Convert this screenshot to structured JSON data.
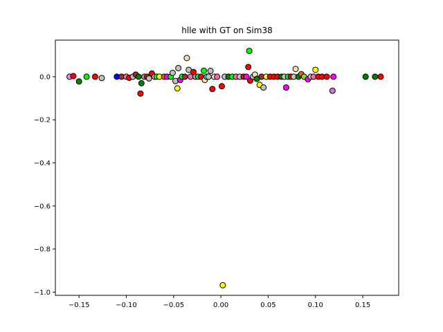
{
  "chart_data": {
    "type": "scatter",
    "title": "hlle with GT on Sim38",
    "xlabel": "",
    "ylabel": "",
    "xlim": [
      -0.175,
      0.188
    ],
    "ylim": [
      -1.015,
      0.17
    ],
    "xticks": [
      -0.15,
      -0.1,
      -0.05,
      0.0,
      0.05,
      0.1,
      0.15
    ],
    "xtick_labels": [
      "−0.15",
      "−0.10",
      "−0.05",
      "0.00",
      "0.05",
      "0.10",
      "0.15"
    ],
    "yticks": [
      -1.0,
      -0.8,
      -0.6,
      -0.4,
      -0.2,
      0.0
    ],
    "ytick_labels": [
      "−1.0",
      "−0.8",
      "−0.6",
      "−0.4",
      "−0.2",
      "0.0"
    ],
    "grid": false,
    "legend": "none",
    "marker_edge_color": "#000000",
    "points": [
      {
        "x": -0.16,
        "y": 0.0,
        "color": "#ee82ee"
      },
      {
        "x": -0.156,
        "y": 0.003,
        "color": "#ff0000"
      },
      {
        "x": -0.15,
        "y": -0.022,
        "color": "#008000"
      },
      {
        "x": -0.142,
        "y": 0.0,
        "color": "#00ff00"
      },
      {
        "x": -0.133,
        "y": 0.0,
        "color": "#ff0000"
      },
      {
        "x": -0.126,
        "y": -0.006,
        "color": "#c0c0c0"
      },
      {
        "x": -0.11,
        "y": 0.0,
        "color": "#0000ff"
      },
      {
        "x": -0.105,
        "y": 0.0,
        "color": "#a52a2a"
      },
      {
        "x": -0.1,
        "y": 0.0,
        "color": "#ff69b4"
      },
      {
        "x": -0.097,
        "y": -0.005,
        "color": "#ff0000"
      },
      {
        "x": -0.093,
        "y": 0.0,
        "color": "#c0c0c0"
      },
      {
        "x": -0.09,
        "y": 0.01,
        "color": "#a52a2a"
      },
      {
        "x": -0.087,
        "y": 0.0,
        "color": "#008000"
      },
      {
        "x": -0.085,
        "y": -0.078,
        "color": "#ff0000"
      },
      {
        "x": -0.084,
        "y": -0.03,
        "color": "#008000"
      },
      {
        "x": -0.081,
        "y": 0.0,
        "color": "#bc8f8f"
      },
      {
        "x": -0.078,
        "y": 0.0,
        "color": "#a52a2a"
      },
      {
        "x": -0.076,
        "y": -0.008,
        "color": "#c0c0c0"
      },
      {
        "x": -0.073,
        "y": 0.015,
        "color": "#ff0000"
      },
      {
        "x": -0.07,
        "y": 0.0,
        "color": "#ffdead"
      },
      {
        "x": -0.068,
        "y": 0.0,
        "color": "#00ff00"
      },
      {
        "x": -0.065,
        "y": 0.0,
        "color": "#ffff00"
      },
      {
        "x": -0.06,
        "y": 0.0,
        "color": "#d2691e"
      },
      {
        "x": -0.057,
        "y": 0.0,
        "color": "#ff00ff"
      },
      {
        "x": -0.053,
        "y": 0.0,
        "color": "#00ff00"
      },
      {
        "x": -0.051,
        "y": 0.018,
        "color": "#c0c0c0"
      },
      {
        "x": -0.048,
        "y": -0.02,
        "color": "#c0c0c0"
      },
      {
        "x": -0.046,
        "y": -0.054,
        "color": "#ffff00"
      },
      {
        "x": -0.045,
        "y": 0.04,
        "color": "#c0c0c0"
      },
      {
        "x": -0.043,
        "y": -0.015,
        "color": "#ff00ff"
      },
      {
        "x": -0.041,
        "y": 0.0,
        "color": "#00ff00"
      },
      {
        "x": -0.038,
        "y": 0.0,
        "color": "#a52a2a"
      },
      {
        "x": -0.036,
        "y": 0.087,
        "color": "#ffdead"
      },
      {
        "x": -0.034,
        "y": 0.032,
        "color": "#c0c0c0"
      },
      {
        "x": -0.032,
        "y": 0.0,
        "color": "#ff69b4"
      },
      {
        "x": -0.029,
        "y": 0.022,
        "color": "#ff0000"
      },
      {
        "x": -0.027,
        "y": 0.0,
        "color": "#bc8f8f"
      },
      {
        "x": -0.024,
        "y": 0.0,
        "color": "#00ff00"
      },
      {
        "x": -0.021,
        "y": 0.0,
        "color": "#ff0000"
      },
      {
        "x": -0.018,
        "y": 0.028,
        "color": "#00ff00"
      },
      {
        "x": -0.017,
        "y": -0.015,
        "color": "#ffdead"
      },
      {
        "x": -0.015,
        "y": 0.0,
        "color": "#00ffff"
      },
      {
        "x": -0.013,
        "y": 0.0,
        "color": "#c0c0c0"
      },
      {
        "x": -0.011,
        "y": 0.027,
        "color": "#c0c0c0"
      },
      {
        "x": -0.009,
        "y": -0.057,
        "color": "#ff0000"
      },
      {
        "x": -0.007,
        "y": 0.0,
        "color": "#ffdead"
      },
      {
        "x": -0.004,
        "y": 0.0,
        "color": "#ff69b4"
      },
      {
        "x": 0.001,
        "y": -0.044,
        "color": "#ff0000"
      },
      {
        "x": 0.002,
        "y": -0.968,
        "color": "#ffff00"
      },
      {
        "x": 0.004,
        "y": 0.0,
        "color": "#c0c0c0"
      },
      {
        "x": 0.008,
        "y": 0.0,
        "color": "#008000"
      },
      {
        "x": 0.012,
        "y": 0.0,
        "color": "#00ff00"
      },
      {
        "x": 0.016,
        "y": 0.0,
        "color": "#ff69b4"
      },
      {
        "x": 0.02,
        "y": 0.0,
        "color": "#c0c0c0"
      },
      {
        "x": 0.024,
        "y": 0.0,
        "color": "#ff0000"
      },
      {
        "x": 0.027,
        "y": 0.0,
        "color": "#ff00ff"
      },
      {
        "x": 0.029,
        "y": 0.045,
        "color": "#ff0000"
      },
      {
        "x": 0.03,
        "y": 0.12,
        "color": "#00ff00"
      },
      {
        "x": 0.031,
        "y": -0.018,
        "color": "#ff0000"
      },
      {
        "x": 0.034,
        "y": 0.0,
        "color": "#c0c0c0"
      },
      {
        "x": 0.036,
        "y": 0.01,
        "color": "#ffdead"
      },
      {
        "x": 0.038,
        "y": -0.01,
        "color": "#008000"
      },
      {
        "x": 0.041,
        "y": -0.038,
        "color": "#ffff00"
      },
      {
        "x": 0.043,
        "y": 0.0,
        "color": "#a52a2a"
      },
      {
        "x": 0.045,
        "y": -0.05,
        "color": "#c0c0c0"
      },
      {
        "x": 0.048,
        "y": 0.0,
        "color": "#ffff00"
      },
      {
        "x": 0.052,
        "y": 0.0,
        "color": "#ff0000"
      },
      {
        "x": 0.056,
        "y": 0.0,
        "color": "#ff0000"
      },
      {
        "x": 0.06,
        "y": 0.0,
        "color": "#ff0000"
      },
      {
        "x": 0.064,
        "y": 0.0,
        "color": "#008000"
      },
      {
        "x": 0.067,
        "y": 0.0,
        "color": "#c0c0c0"
      },
      {
        "x": 0.069,
        "y": -0.05,
        "color": "#ff00ff"
      },
      {
        "x": 0.071,
        "y": 0.0,
        "color": "#00ff00"
      },
      {
        "x": 0.074,
        "y": 0.0,
        "color": "#ff0000"
      },
      {
        "x": 0.077,
        "y": 0.0,
        "color": "#c0c0c0"
      },
      {
        "x": 0.079,
        "y": 0.036,
        "color": "#ffdead"
      },
      {
        "x": 0.082,
        "y": 0.0,
        "color": "#008000"
      },
      {
        "x": 0.085,
        "y": 0.012,
        "color": "#d2691e"
      },
      {
        "x": 0.088,
        "y": 0.0,
        "color": "#9acd32"
      },
      {
        "x": 0.092,
        "y": -0.012,
        "color": "#ff00ff"
      },
      {
        "x": 0.095,
        "y": 0.0,
        "color": "#c0c0c0"
      },
      {
        "x": 0.098,
        "y": 0.0,
        "color": "#ff69b4"
      },
      {
        "x": 0.1,
        "y": 0.032,
        "color": "#ffff00"
      },
      {
        "x": 0.103,
        "y": 0.0,
        "color": "#ff0000"
      },
      {
        "x": 0.107,
        "y": 0.0,
        "color": "#ff0000"
      },
      {
        "x": 0.112,
        "y": 0.0,
        "color": "#ff0000"
      },
      {
        "x": 0.118,
        "y": -0.065,
        "color": "#da70d6"
      },
      {
        "x": 0.119,
        "y": 0.0,
        "color": "#ff00ff"
      },
      {
        "x": 0.153,
        "y": 0.0,
        "color": "#008000"
      },
      {
        "x": 0.163,
        "y": 0.0,
        "color": "#008000"
      },
      {
        "x": 0.169,
        "y": 0.0,
        "color": "#ff0000"
      }
    ]
  }
}
